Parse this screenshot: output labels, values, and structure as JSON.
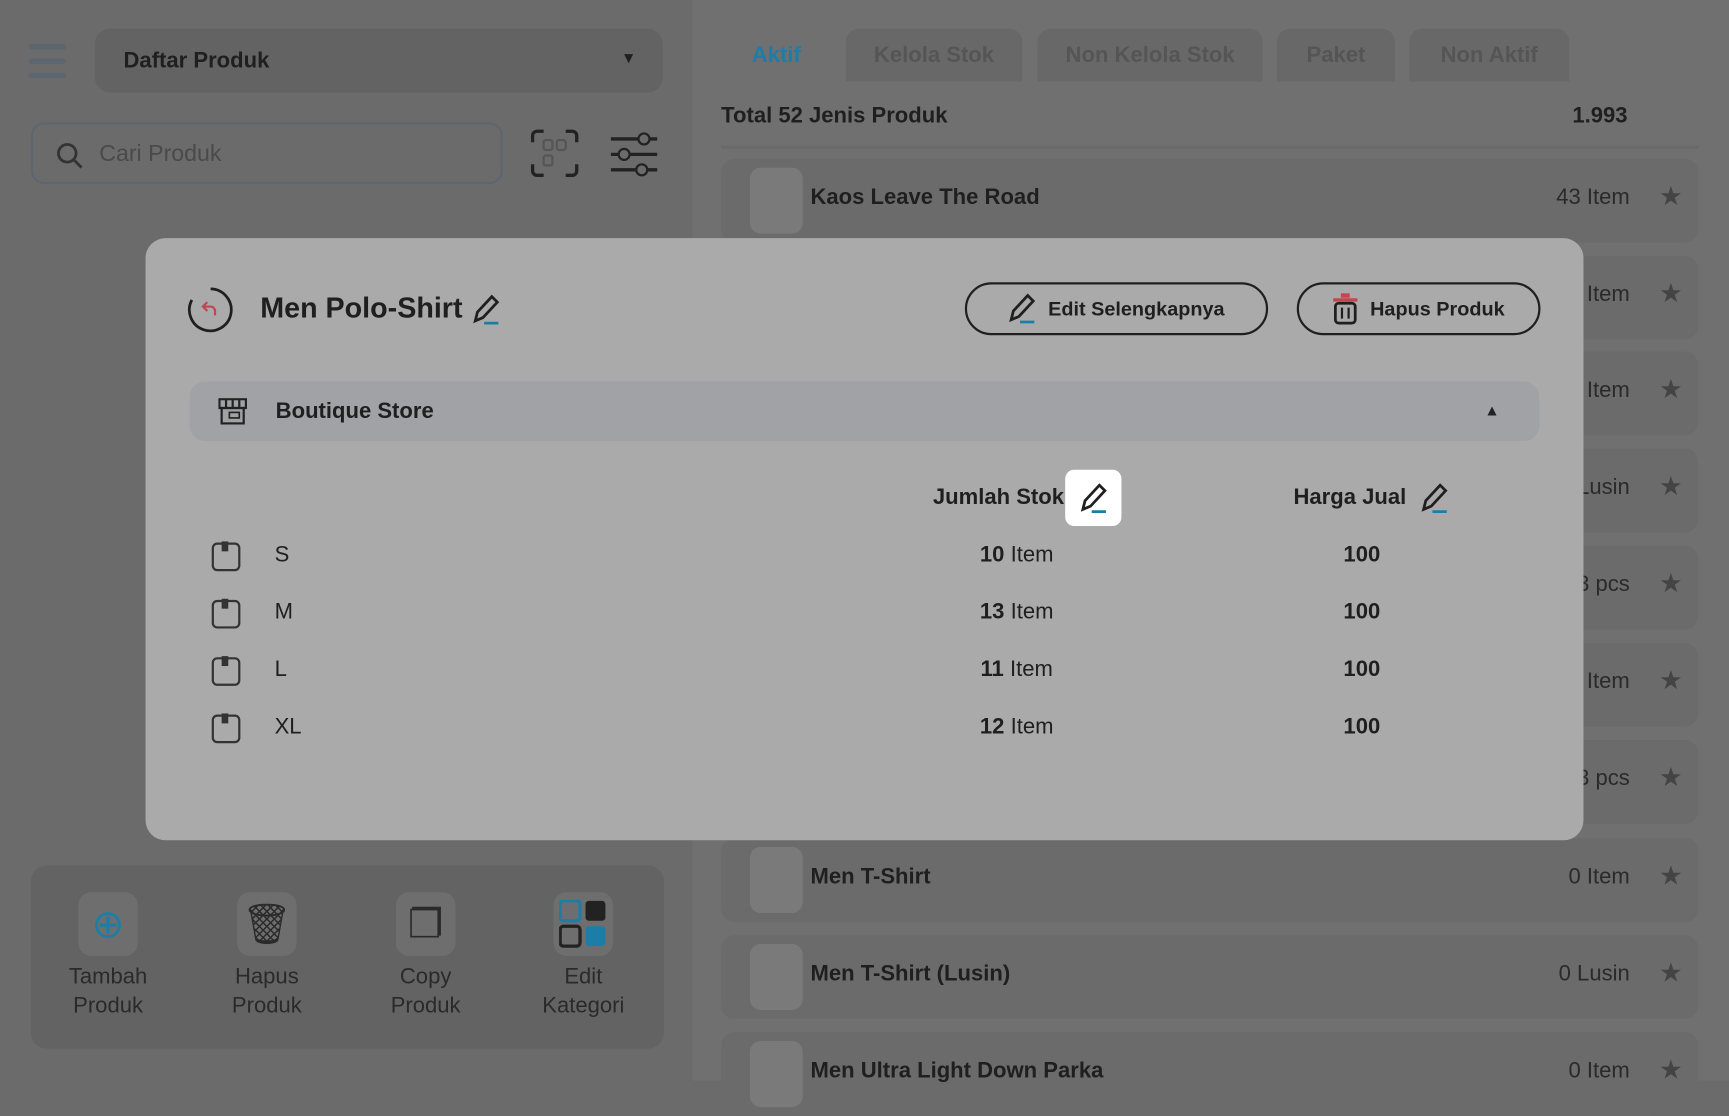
{
  "sidebar": {
    "menu_icon": "hamburger-icon",
    "dropdown_label": "Daftar Produk",
    "search_placeholder": "Cari Produk",
    "actions": [
      {
        "label1": "Tambah",
        "label2": "Produk"
      },
      {
        "label1": "Hapus",
        "label2": "Produk"
      },
      {
        "label1": "Copy",
        "label2": "Produk"
      },
      {
        "label1": "Edit",
        "label2": "Kategori"
      }
    ]
  },
  "tabs": [
    {
      "label": "Aktif",
      "active": true
    },
    {
      "label": "Kelola Stok"
    },
    {
      "label": "Non Kelola Stok"
    },
    {
      "label": "Paket"
    },
    {
      "label": "Non Aktif"
    }
  ],
  "summary": {
    "label": "Total 52 Jenis Produk",
    "value": "1.993"
  },
  "products": [
    {
      "name": "Kaos Leave The Road",
      "qty": "43 Item"
    },
    {
      "name": "",
      "qty": "Item"
    },
    {
      "name": "",
      "qty": "Item"
    },
    {
      "name": "",
      "qty": "Lusin"
    },
    {
      "name": "",
      "qty": "3 pcs"
    },
    {
      "name": "",
      "qty": "Item"
    },
    {
      "name": "",
      "qty": "3 pcs"
    },
    {
      "name": "Men T-Shirt",
      "qty": "0 Item"
    },
    {
      "name": "Men T-Shirt (Lusin)",
      "qty": "0 Lusin"
    },
    {
      "name": "Men Ultra Light Down Parka",
      "qty": "0 Item"
    }
  ],
  "modal": {
    "title": "Men Polo-Shirt",
    "edit_more": "Edit Selengkapnya",
    "delete": "Hapus Produk",
    "store": "Boutique Store",
    "col_stock": "Jumlah Stok",
    "col_price": "Harga Jual",
    "variants": [
      {
        "name": "S",
        "stock": "10",
        "unit": "Item",
        "price": "100"
      },
      {
        "name": "M",
        "stock": "13",
        "unit": "Item",
        "price": "100"
      },
      {
        "name": "L",
        "stock": "11",
        "unit": "Item",
        "price": "100"
      },
      {
        "name": "XL",
        "stock": "12",
        "unit": "Item",
        "price": "100"
      }
    ]
  },
  "colors": {
    "accent": "#1c7ea6",
    "delete_red": "#c0474f"
  }
}
